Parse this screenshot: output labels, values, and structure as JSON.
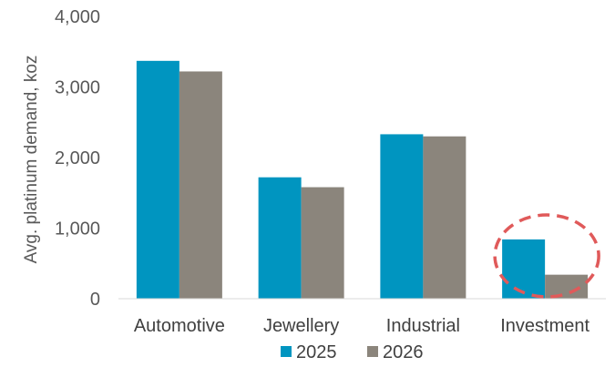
{
  "chart_data": {
    "type": "bar",
    "title": "",
    "xlabel": "",
    "ylabel": "Avg. platinum demand, koz",
    "ylim": [
      0,
      4000
    ],
    "yticks": [
      0,
      1000,
      2000,
      3000,
      4000
    ],
    "ytick_labels": [
      "0",
      "1,000",
      "2,000",
      "3,000",
      "4,000"
    ],
    "grid": false,
    "legend_position": "bottom",
    "categories": [
      "Automotive",
      "Jewellery",
      "Industrial",
      "Investment"
    ],
    "series": [
      {
        "name": "2025",
        "color": "#0095C0",
        "values": [
          3370,
          1720,
          2330,
          840
        ]
      },
      {
        "name": "2026",
        "color": "#8B857C",
        "values": [
          3220,
          1580,
          2300,
          340
        ]
      }
    ],
    "annotation": {
      "type": "dashed-ellipse",
      "category": "Investment",
      "color": "#E05A5A"
    }
  }
}
